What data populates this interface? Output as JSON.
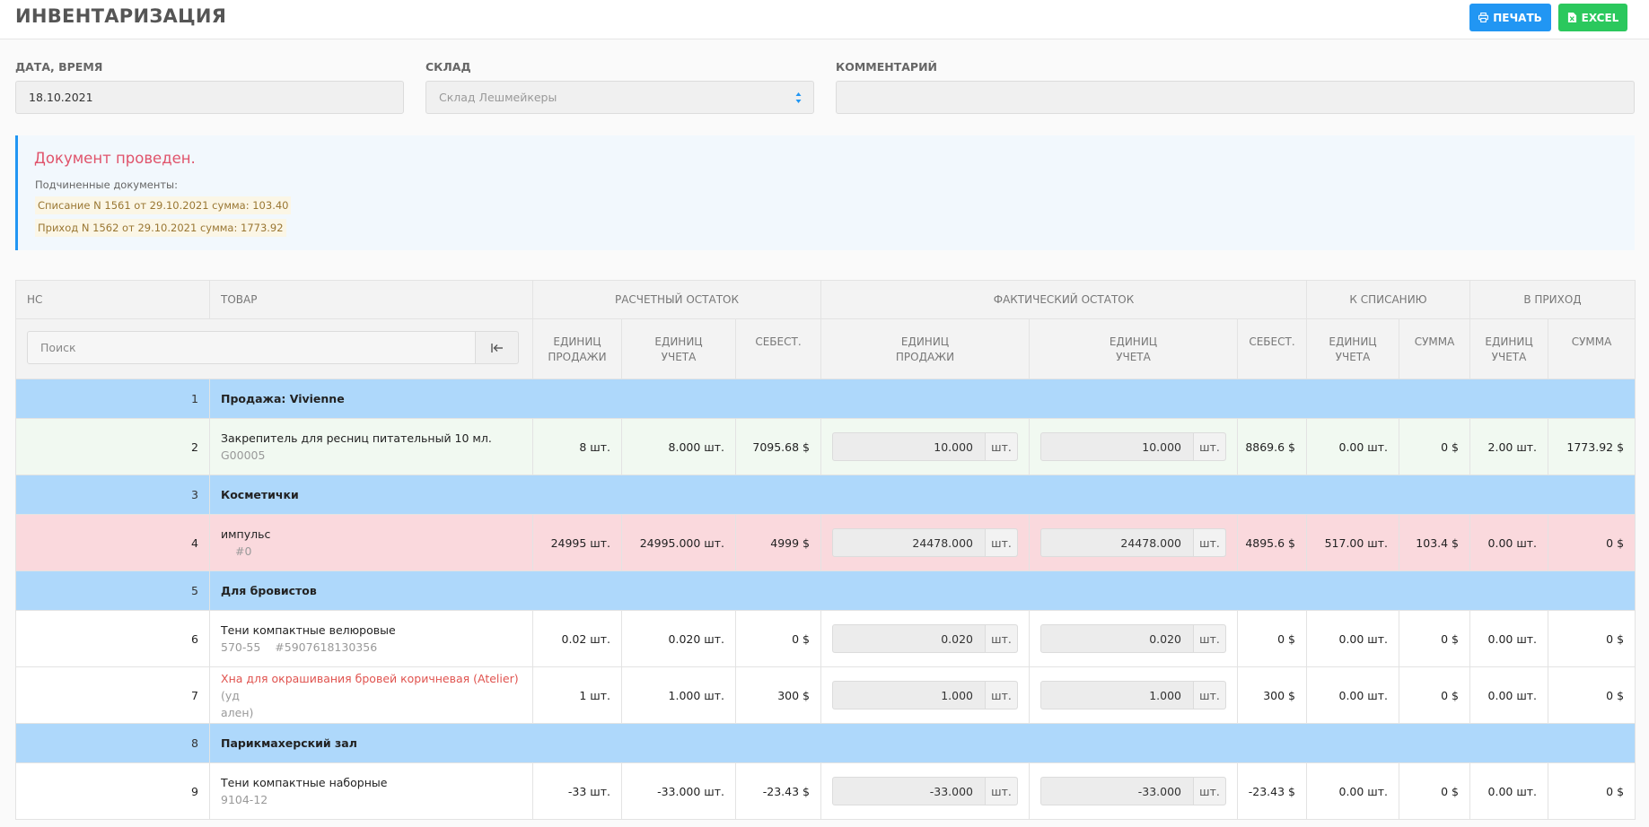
{
  "header": {
    "title": "ИНВЕНТАРИЗАЦИЯ",
    "print_label": "ПЕЧАТЬ",
    "excel_label": "EXCEL"
  },
  "form": {
    "date_label": "ДАТА, ВРЕМЯ",
    "date_value": "18.10.2021",
    "warehouse_label": "СКЛАД",
    "warehouse_value": "Склад Лешмейкеры",
    "comment_label": "КОММЕНТАРИЙ",
    "comment_value": ""
  },
  "notice": {
    "title": "Документ проведен.",
    "subtitle": "Подчиненные документы:",
    "docs": [
      "Списание N 1561 от 29.10.2021 сумма: 103.40",
      "Приход N 1562 от 29.10.2021 сумма: 1773.92"
    ]
  },
  "colors": {
    "accent": "#2196f3",
    "excel": "#2bc85d",
    "group_row": "#aed8fb",
    "ok_row": "#f1f9f1",
    "warn_row": "#fad9dd",
    "notice_title": "#e0536b"
  },
  "table": {
    "headers": {
      "nc": "НС",
      "product": "ТОВАР",
      "calc": "РАСЧЕТНЫЙ ОСТАТОК",
      "fact": "ФАКТИЧЕСКИЙ ОСТАТОК",
      "writeoff": "К СПИСАНИЮ",
      "income": "В ПРИХОД"
    },
    "subheaders": {
      "calc_sale_1": "ЕДИНИЦ",
      "calc_sale_2": "ПРОДАЖИ",
      "calc_acc_1": "ЕДИНИЦ",
      "calc_acc_2": "УЧЕТА",
      "calc_cost": "СЕБЕСТ.",
      "fact_sale_1": "ЕДИНИЦ",
      "fact_sale_2": "ПРОДАЖИ",
      "fact_acc_1": "ЕДИНИЦ",
      "fact_acc_2": "УЧЕТА",
      "fact_cost": "СЕБЕСТ.",
      "wo_acc_1": "ЕДИНИЦ",
      "wo_acc_2": "УЧЕТА",
      "wo_sum": "СУММА",
      "in_acc_1": "ЕДИНИЦ",
      "in_acc_2": "УЧЕТА",
      "in_sum": "СУММА"
    },
    "search_placeholder": "Поиск",
    "rows": [
      {
        "nc": "1",
        "name": "Продажа: Vivienne"
      },
      {
        "nc": "2",
        "name": "Закрепитель для ресниц питательный 10 мл.",
        "code": "G00005",
        "calc_sale": "8 шт.",
        "calc_acc": "8.000 шт.",
        "calc_cost": "7095.68 $",
        "fact_sale": "10.000",
        "fact_sale_unit": "шт.",
        "fact_acc": "10.000",
        "fact_acc_unit": "шт.",
        "fact_cost": "8869.6 $",
        "wo_acc": "0.00 шт.",
        "wo_sum": "0 $",
        "in_acc": "2.00 шт.",
        "in_sum": "1773.92 $"
      },
      {
        "nc": "3",
        "name": "Косметички"
      },
      {
        "nc": "4",
        "name": "импульс",
        "code": "#0",
        "calc_sale": "24995 шт.",
        "calc_acc": "24995.000 шт.",
        "calc_cost": "4999 $",
        "fact_sale": "24478.000",
        "fact_sale_unit": "шт.",
        "fact_acc": "24478.000",
        "fact_acc_unit": "шт.",
        "fact_cost": "4895.6 $",
        "wo_acc": "517.00 шт.",
        "wo_sum": "103.4 $",
        "in_acc": "0.00 шт.",
        "in_sum": "0 $"
      },
      {
        "nc": "5",
        "name": "Для бровистов"
      },
      {
        "nc": "6",
        "name": "Тени компактные велюровые",
        "code": "570-55",
        "barcode": "#5907618130356",
        "calc_sale": "0.02 шт.",
        "calc_acc": "0.020 шт.",
        "calc_cost": "0 $",
        "fact_sale": "0.020",
        "fact_sale_unit": "шт.",
        "fact_acc": "0.020",
        "fact_acc_unit": "шт.",
        "fact_cost": "0 $",
        "wo_acc": "0.00 шт.",
        "wo_sum": "0 $",
        "in_acc": "0.00 шт.",
        "in_sum": "0 $"
      },
      {
        "nc": "7",
        "name": "Хна для окрашивания бровей коричневая (Atelier)",
        "name_suffix_1": " (уд",
        "name_suffix_2": "ален)",
        "calc_sale": "1 шт.",
        "calc_acc": "1.000 шт.",
        "calc_cost": "300 $",
        "fact_sale": "1.000",
        "fact_sale_unit": "шт.",
        "fact_acc": "1.000",
        "fact_acc_unit": "шт.",
        "fact_cost": "300 $",
        "wo_acc": "0.00 шт.",
        "wo_sum": "0 $",
        "in_acc": "0.00 шт.",
        "in_sum": "0 $"
      },
      {
        "nc": "8",
        "name": "Парикмахерский зал"
      },
      {
        "nc": "9",
        "name": "Тени компактные наборные",
        "code": "9104-12",
        "calc_sale": "-33 шт.",
        "calc_acc": "-33.000 шт.",
        "calc_cost": "-23.43 $",
        "fact_sale": "-33.000",
        "fact_sale_unit": "шт.",
        "fact_acc": "-33.000",
        "fact_acc_unit": "шт.",
        "fact_cost": "-23.43 $",
        "wo_acc": "0.00 шт.",
        "wo_sum": "0 $",
        "in_acc": "0.00 шт.",
        "in_sum": "0 $"
      }
    ]
  }
}
